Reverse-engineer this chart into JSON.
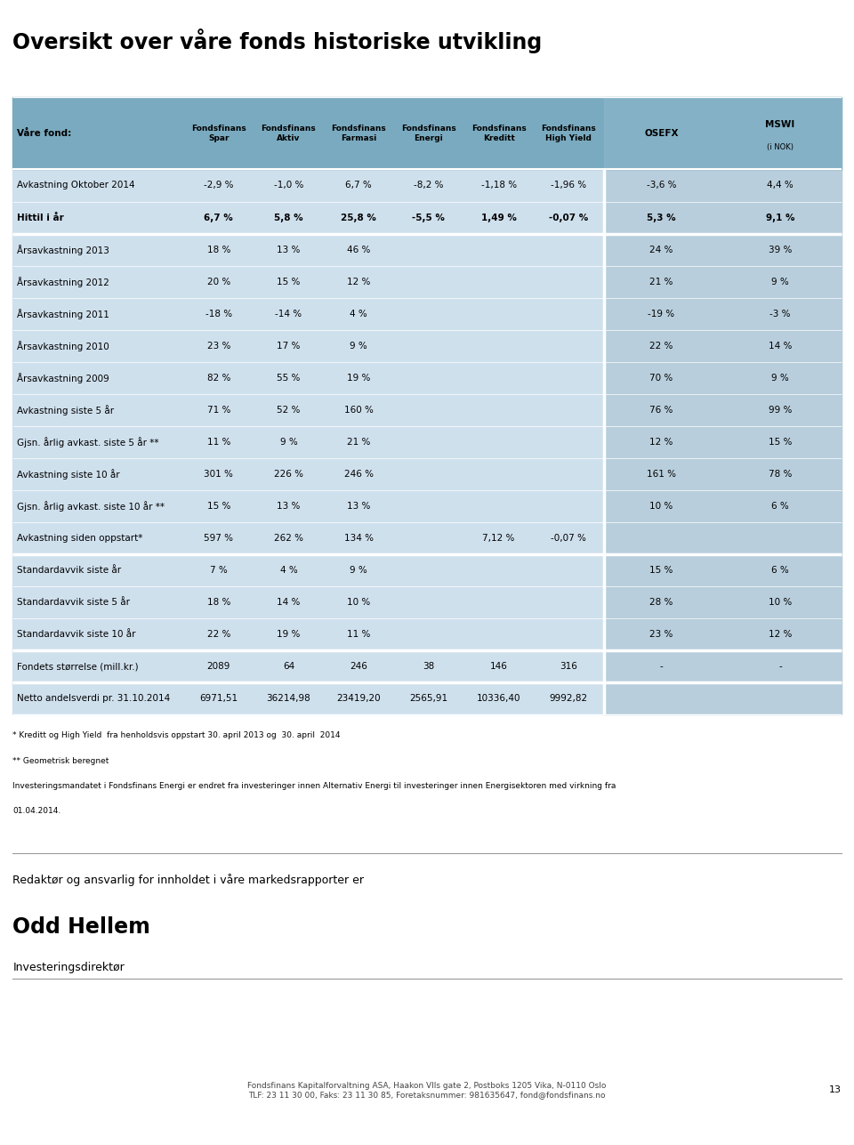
{
  "title": "Oversikt over våre fonds historiske utvikling",
  "rows": [
    {
      "label": "Avkastning Oktober 2014",
      "values": [
        "-2,9 %",
        "-1,0 %",
        "6,7 %",
        "-8,2 %",
        "-1,18 %",
        "-1,96 %",
        "-3,6 %",
        "4,4 %"
      ],
      "bold": false,
      "group": "top"
    },
    {
      "label": "Hittil i år",
      "values": [
        "6,7 %",
        "5,8 %",
        "25,8 %",
        "-5,5 %",
        "1,49 %",
        "-0,07 %",
        "5,3 %",
        "9,1 %"
      ],
      "bold": true,
      "group": "top"
    },
    {
      "label": "Årsavkastning 2013",
      "values": [
        "18 %",
        "13 %",
        "46 %",
        "",
        "",
        "",
        "24 %",
        "39 %"
      ],
      "bold": false,
      "group": "mid"
    },
    {
      "label": "Årsavkastning 2012",
      "values": [
        "20 %",
        "15 %",
        "12 %",
        "",
        "",
        "",
        "21 %",
        "9 %"
      ],
      "bold": false,
      "group": "mid"
    },
    {
      "label": "Årsavkastning 2011",
      "values": [
        "-18 %",
        "-14 %",
        "4 %",
        "",
        "",
        "",
        "-19 %",
        "-3 %"
      ],
      "bold": false,
      "group": "mid"
    },
    {
      "label": "Årsavkastning 2010",
      "values": [
        "23 %",
        "17 %",
        "9 %",
        "",
        "",
        "",
        "22 %",
        "14 %"
      ],
      "bold": false,
      "group": "mid"
    },
    {
      "label": "Årsavkastning 2009",
      "values": [
        "82 %",
        "55 %",
        "19 %",
        "",
        "",
        "",
        "70 %",
        "9 %"
      ],
      "bold": false,
      "group": "mid"
    },
    {
      "label": "Avkastning siste 5 år",
      "values": [
        "71 %",
        "52 %",
        "160 %",
        "",
        "",
        "",
        "76 %",
        "99 %"
      ],
      "bold": false,
      "group": "mid"
    },
    {
      "label": "Gjsn. årlig avkast. siste 5 år **",
      "values": [
        "11 %",
        "9 %",
        "21 %",
        "",
        "",
        "",
        "12 %",
        "15 %"
      ],
      "bold": false,
      "group": "mid"
    },
    {
      "label": "Avkastning siste 10 år",
      "values": [
        "301 %",
        "226 %",
        "246 %",
        "",
        "",
        "",
        "161 %",
        "78 %"
      ],
      "bold": false,
      "group": "mid"
    },
    {
      "label": "Gjsn. årlig avkast. siste 10 år **",
      "values": [
        "15 %",
        "13 %",
        "13 %",
        "",
        "",
        "",
        "10 %",
        "6 %"
      ],
      "bold": false,
      "group": "mid"
    },
    {
      "label": "Avkastning siden oppstart*",
      "values": [
        "597 %",
        "262 %",
        "134 %",
        "",
        "7,12 %",
        "-0,07 %",
        "",
        ""
      ],
      "bold": false,
      "group": "mid"
    },
    {
      "label": "Standardavvik siste år",
      "values": [
        "7 %",
        "4 %",
        "9 %",
        "",
        "",
        "",
        "15 %",
        "6 %"
      ],
      "bold": false,
      "group": "std"
    },
    {
      "label": "Standardavvik siste 5 år",
      "values": [
        "18 %",
        "14 %",
        "10 %",
        "",
        "",
        "",
        "28 %",
        "10 %"
      ],
      "bold": false,
      "group": "std"
    },
    {
      "label": "Standardavvik siste 10 år",
      "values": [
        "22 %",
        "19 %",
        "11 %",
        "",
        "",
        "",
        "23 %",
        "12 %"
      ],
      "bold": false,
      "group": "std"
    },
    {
      "label": "Fondets størrelse (mill.kr.)",
      "values": [
        "2089",
        "64",
        "246",
        "38",
        "146",
        "316",
        "-",
        "-"
      ],
      "bold": false,
      "group": "size"
    },
    {
      "label": "Netto andelsverdi pr. 31.10.2014",
      "values": [
        "6971,51",
        "36214,98",
        "23419,20",
        "2565,91",
        "10336,40",
        "9992,82",
        "",
        ""
      ],
      "bold": false,
      "group": "nav"
    }
  ],
  "footnotes": [
    "* Kreditt og High Yield  fra henholdsvis oppstart 30. april 2013 og  30. april  2014",
    "** Geometrisk beregnet",
    "Investeringsmandatet i Fondsfinans Energi er endret fra investeringer innen Alternativ Energi til investeringer innen Energisektoren med virkning fra",
    "01.04.2014."
  ],
  "bottom_text1": "Redaktør og ansvarlig for innholdet i våre markedsrapporter er",
  "bottom_text2": "Odd Hellem",
  "bottom_text3": "Investeringsdirektør",
  "footer_text": "Fondsfinans Kapitalforvaltning ASA, Haakon VIIs gate 2, Postboks 1205 Vika, N-0110 Oslo\nTLF: 23 11 30 00, Faks: 23 11 30 85, Foretaksnummer: 981635647, fond@fondsfinans.no",
  "page_num": "13",
  "bg_color": "#cfe0ed",
  "header_bg": "#7aaabf",
  "right_panel_bg": "#b8cedc",
  "white_bg": "#ffffff",
  "row_line_color": "#ffffff",
  "thick_line_color": "#ffffff"
}
